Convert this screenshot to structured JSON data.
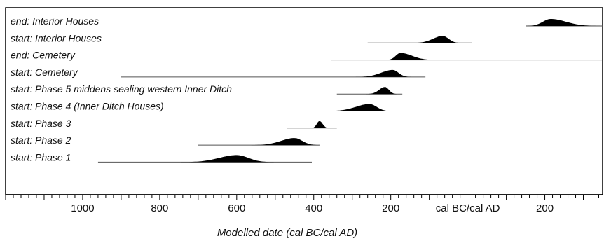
{
  "chart_data": {
    "type": "density",
    "xlabel": "Modelled date (cal BC/cal AD)",
    "era_label": "cal BC/cal AD",
    "x_range": [
      -1200,
      350
    ],
    "ticks": [
      {
        "value": -1000,
        "label": "1000"
      },
      {
        "value": -800,
        "label": "800"
      },
      {
        "value": -600,
        "label": "600"
      },
      {
        "value": -400,
        "label": "400"
      },
      {
        "value": -200,
        "label": "200"
      },
      {
        "value": 200,
        "label": "200"
      }
    ],
    "series": [
      {
        "name": "end: Interior Houses",
        "range": [
          150,
          350
        ],
        "peak": 215,
        "sd_left": 20,
        "sd_right": 40
      },
      {
        "name": "start: Interior Houses",
        "range": [
          -260,
          10
        ],
        "peak": -65,
        "sd_left": 25,
        "sd_right": 15
      },
      {
        "name": "end: Cemetery",
        "range": [
          -355,
          350
        ],
        "peak": -175,
        "sd_left": 12,
        "sd_right": 30
      },
      {
        "name": "start: Cemetery",
        "range": [
          -900,
          -110
        ],
        "peak": -195,
        "sd_left": 30,
        "sd_right": 15
      },
      {
        "name": "start: Phase 5 middens sealing western Inner Ditch",
        "range": [
          -340,
          -170
        ],
        "peak": -215,
        "sd_left": 15,
        "sd_right": 10
      },
      {
        "name": "start: Phase 4 (Inner Ditch Houses)",
        "range": [
          -400,
          -190
        ],
        "peak": -255,
        "sd_left": 35,
        "sd_right": 18
      },
      {
        "name": "start: Phase 3",
        "range": [
          -470,
          -340
        ],
        "peak": -385,
        "sd_left": 7,
        "sd_right": 8
      },
      {
        "name": "start: Phase 2",
        "range": [
          -700,
          -385
        ],
        "peak": -450,
        "sd_left": 35,
        "sd_right": 20
      },
      {
        "name": "start: Phase 1",
        "range": [
          -960,
          -405
        ],
        "peak": -600,
        "sd_left": 45,
        "sd_right": 30
      }
    ]
  }
}
